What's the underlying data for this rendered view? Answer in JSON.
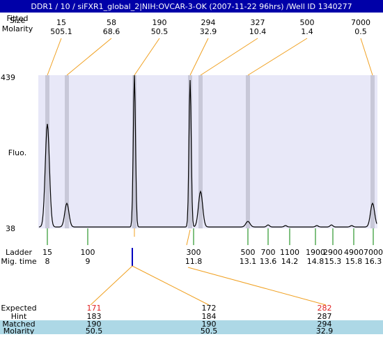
{
  "header": {
    "title": "DDR1 / 10 / siFXR1_global_2|NIH:OVCAR-3-OK (2007-11-22 96hrs) /Well ID 1340277"
  },
  "peaks": {
    "row_labels": [
      "Fitted",
      "Size",
      "Molarity"
    ],
    "items": [
      {
        "size": "15",
        "molarity": "505.1"
      },
      {
        "size": "58",
        "molarity": "68.6"
      },
      {
        "size": "190",
        "molarity": "50.5"
      },
      {
        "size": "294",
        "molarity": "32.9"
      },
      {
        "size": "327",
        "molarity": "10.4"
      },
      {
        "size": "500",
        "molarity": "1.4"
      },
      {
        "size": "7000",
        "molarity": "0.5"
      }
    ]
  },
  "plot": {
    "y_label": "Fluo.",
    "y_top": "439",
    "y_bottom": "38"
  },
  "ladder": {
    "label": "Ladder",
    "time_label": "Mig. time",
    "items": [
      {
        "size": "15",
        "time": "8"
      },
      {
        "size": "100",
        "time": "9"
      },
      {
        "size": "300",
        "time": "11.8"
      },
      {
        "size": "500",
        "time": "13.1"
      },
      {
        "size": "700",
        "time": "13.6"
      },
      {
        "size": "1100",
        "time": "14.2"
      },
      {
        "size": "1900",
        "time": "14.8"
      },
      {
        "size": "2900",
        "time": "15.3"
      },
      {
        "size": "4900",
        "time": "15.8"
      },
      {
        "size": "7000",
        "time": "16.3"
      }
    ]
  },
  "expected": {
    "labels": [
      "Expected",
      "Hint",
      "Matched",
      "Molarity"
    ],
    "items": [
      {
        "expected": "171",
        "hint": "183",
        "matched": "190",
        "molarity": "50.5"
      },
      {
        "expected": "172",
        "hint": "184",
        "matched": "190",
        "molarity": "50.5"
      },
      {
        "expected": "282",
        "hint": "287",
        "matched": "294",
        "molarity": "32.9"
      }
    ]
  }
}
